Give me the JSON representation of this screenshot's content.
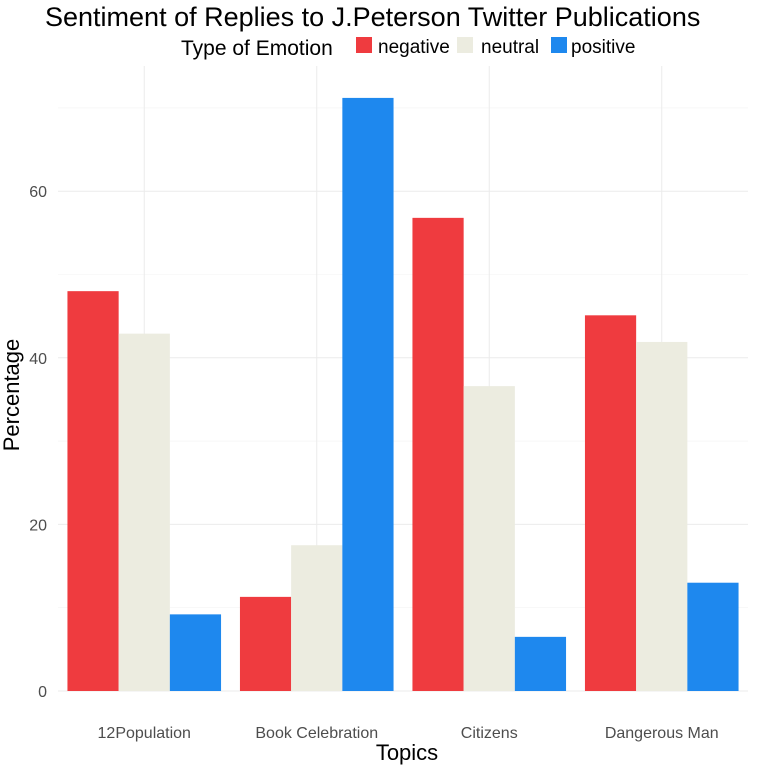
{
  "chart_data": {
    "type": "bar",
    "title": "Sentiment of Replies to J.Peterson Twitter Publications",
    "xlabel": "Topics",
    "ylabel": "Percentage",
    "categories": [
      "12Population",
      "Book Celebration",
      "Citizens",
      "Dangerous Man"
    ],
    "series": [
      {
        "name": "negative",
        "color": "#ef3b3f",
        "values": [
          48.0,
          11.3,
          56.8,
          45.1
        ]
      },
      {
        "name": "neutral",
        "color": "#ecece0",
        "values": [
          42.9,
          17.5,
          36.6,
          41.9
        ]
      },
      {
        "name": "positive",
        "color": "#1e88ee",
        "values": [
          9.2,
          71.2,
          6.5,
          13.0
        ]
      }
    ],
    "ylim": [
      0,
      73
    ],
    "yticks": [
      0,
      20,
      40,
      60
    ],
    "grid": true,
    "legend": {
      "title": "Type of Emotion",
      "placement": "top"
    }
  }
}
